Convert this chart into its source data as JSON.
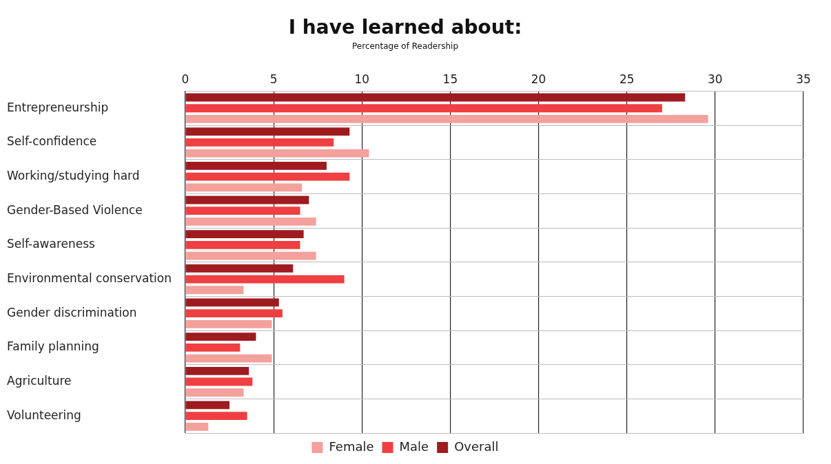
{
  "chart_data": {
    "type": "bar",
    "orientation": "horizontal",
    "title": "I have learned about:",
    "subtitle": "Percentage of Readership",
    "categories": [
      "Entrepreneurship",
      "Self-confidence",
      "Working/studying hard",
      "Gender-Based Violence",
      "Self-awareness",
      "Environmental conservation",
      "Gender discrimination",
      "Family planning",
      "Agriculture",
      "Volunteering"
    ],
    "series": [
      {
        "name": "Female",
        "color": "#f4a09c",
        "values": [
          29.6,
          10.4,
          6.6,
          7.4,
          7.4,
          3.3,
          4.9,
          4.9,
          3.3,
          1.3
        ]
      },
      {
        "name": "Male",
        "color": "#ef3f42",
        "values": [
          27.0,
          8.4,
          9.3,
          6.5,
          6.5,
          9.0,
          5.5,
          3.1,
          3.8,
          3.5
        ]
      },
      {
        "name": "Overall",
        "color": "#9e1b20",
        "values": [
          28.3,
          9.3,
          8.0,
          7.0,
          6.7,
          6.1,
          5.3,
          4.0,
          3.6,
          2.5
        ]
      }
    ],
    "xlim": [
      0,
      35
    ],
    "xticks": [
      0,
      5,
      10,
      15,
      20,
      25,
      30,
      35
    ],
    "grid": true,
    "legend": "bottom"
  }
}
